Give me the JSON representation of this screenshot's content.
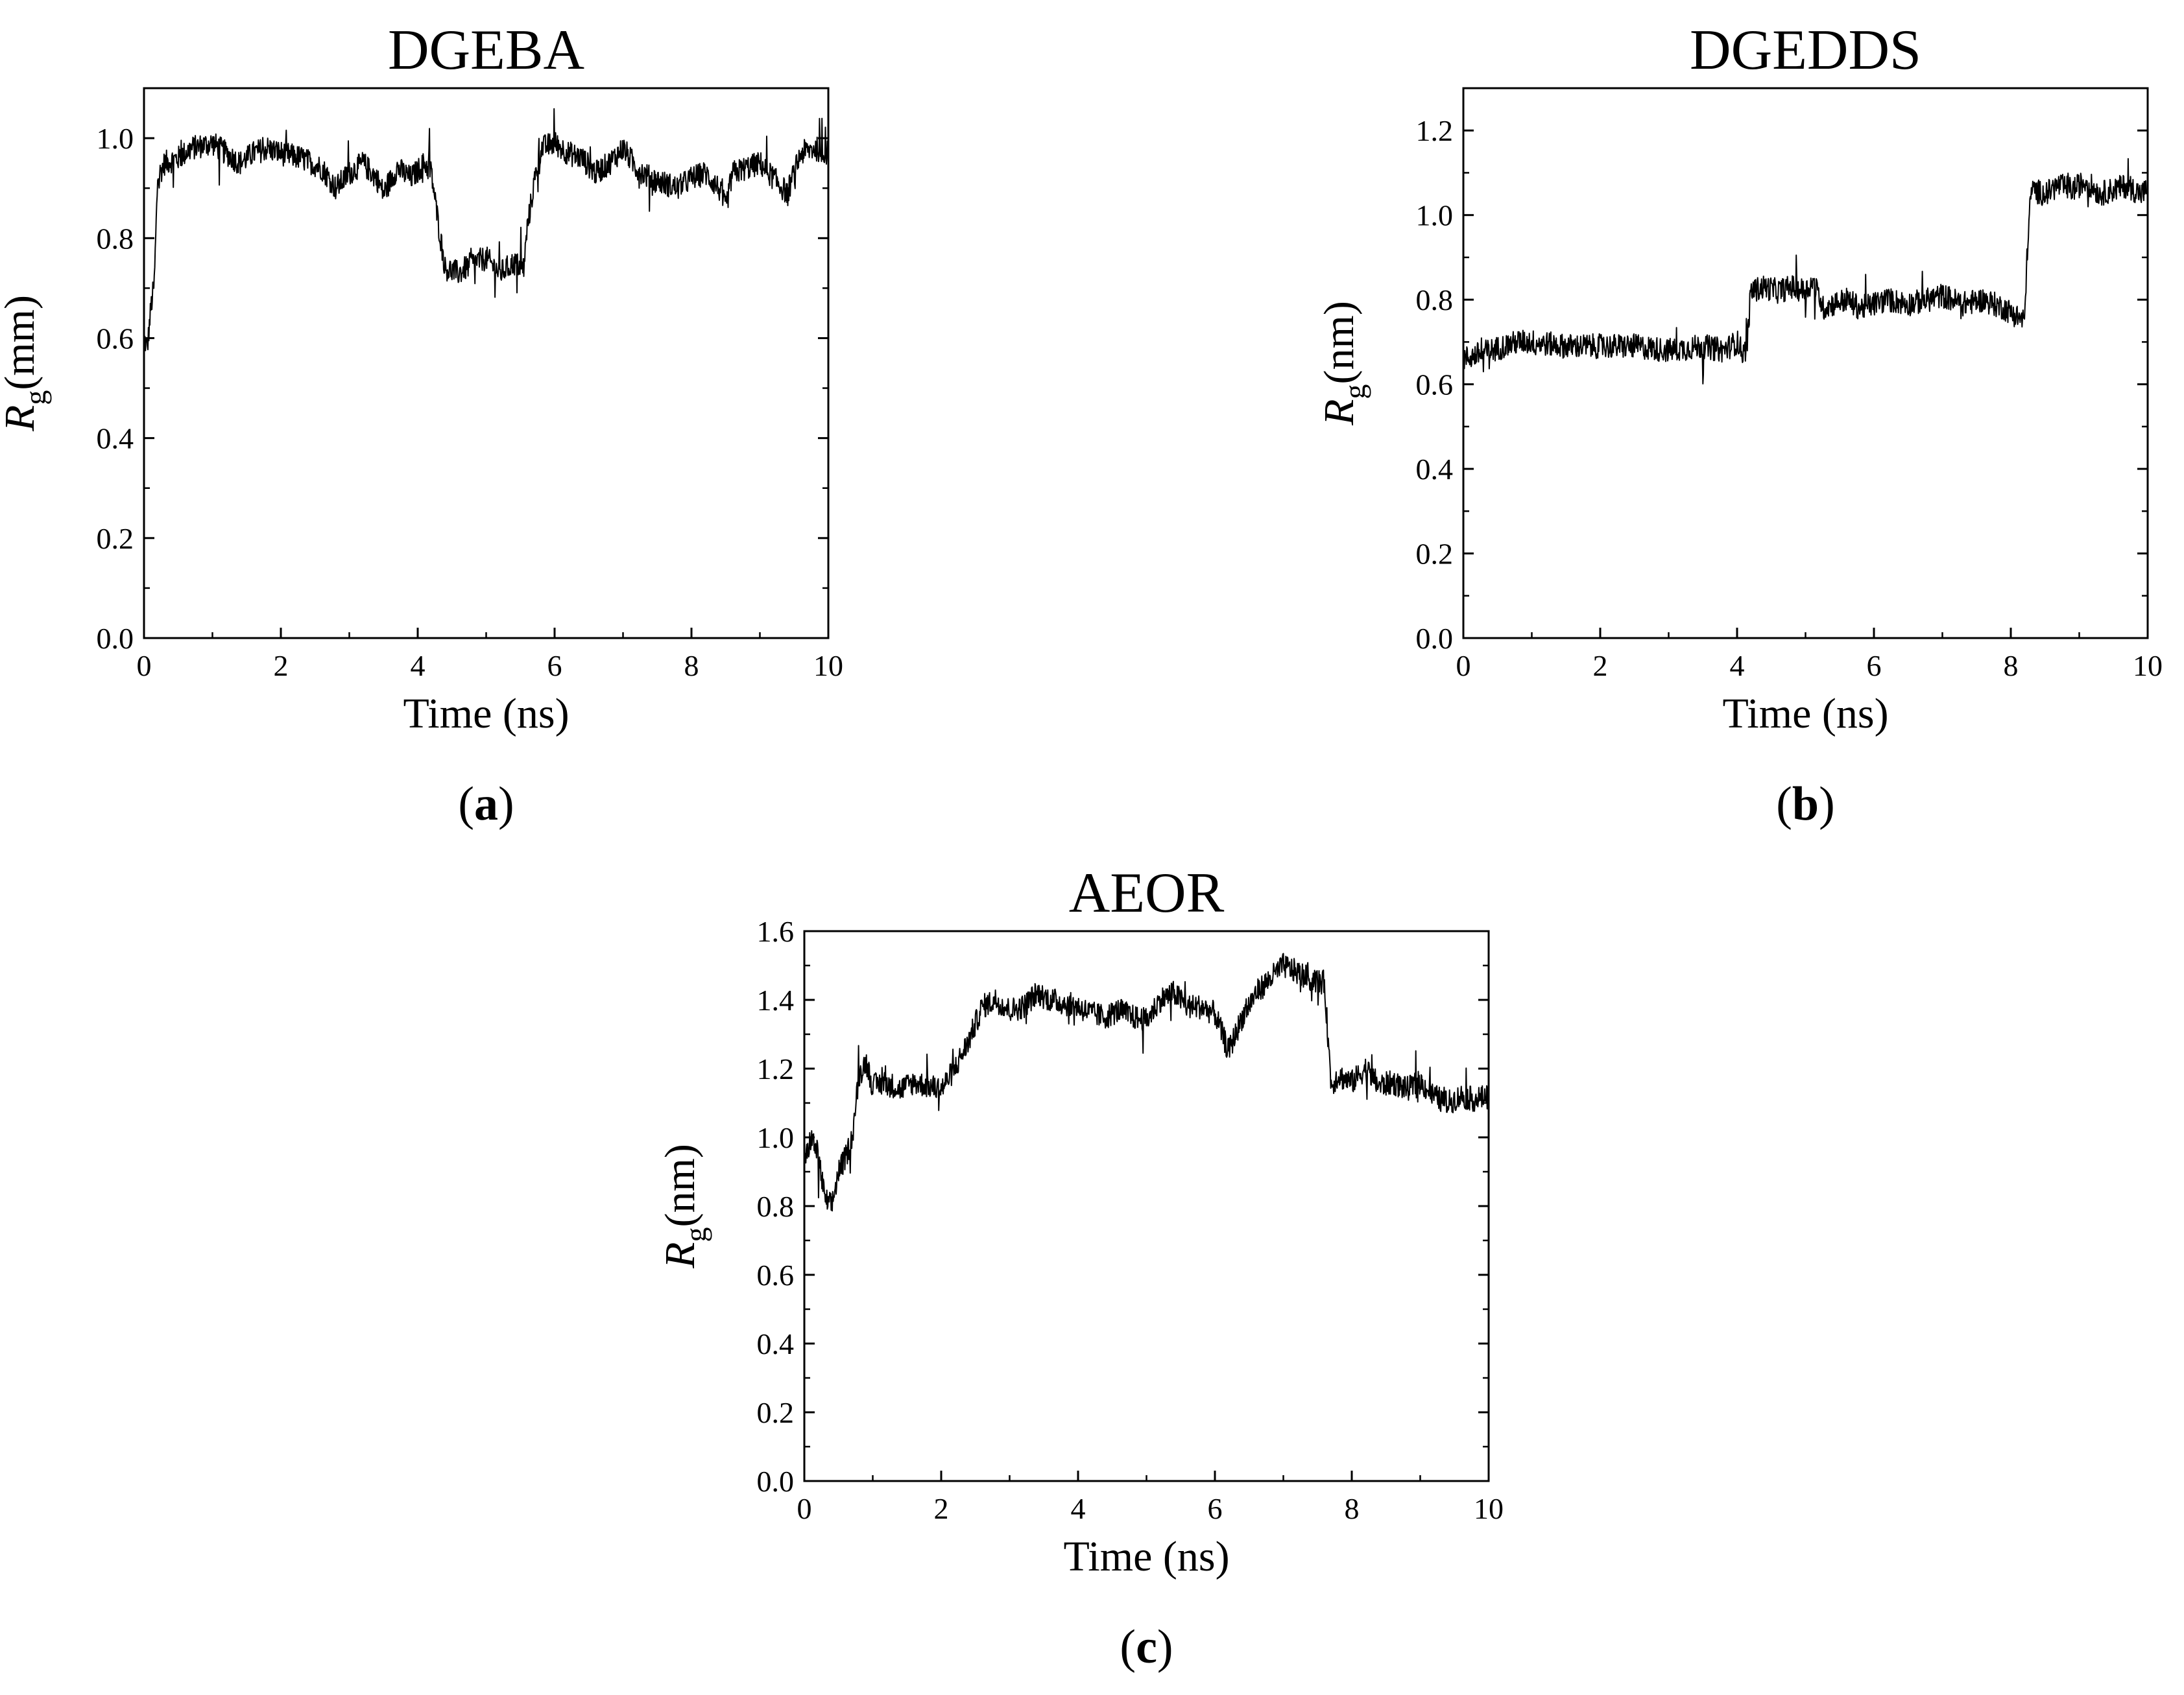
{
  "figure": {
    "panels": [
      {
        "id": "a",
        "letter": "a"
      },
      {
        "id": "b",
        "letter": "b"
      },
      {
        "id": "c",
        "letter": "c"
      }
    ]
  },
  "chart_data": [
    {
      "type": "line",
      "title": "DGEBA",
      "xlabel": "Time (ns)",
      "ylabel_symbol": "R",
      "ylabel_subscript": "g",
      "ylabel_unit": "(mm)",
      "xlim": [
        0,
        10
      ],
      "ylim": [
        0,
        1.1
      ],
      "xticks": [
        "0",
        "2",
        "4",
        "6",
        "8",
        "10"
      ],
      "yticks": [
        "0.0",
        "0.2",
        "0.4",
        "0.6",
        "0.8",
        "1.0"
      ],
      "line_color": "#000000",
      "grid": false,
      "series": [
        {
          "x": [
            0,
            0.05,
            0.1,
            0.15,
            0.2,
            0.3,
            0.5,
            0.7,
            1.0,
            1.2,
            1.4,
            1.6,
            1.8,
            2.0,
            2.3,
            2.6,
            2.8,
            3.0,
            3.2,
            3.4,
            3.5,
            3.7,
            3.9,
            4.1,
            4.2,
            4.3,
            4.4,
            4.6,
            4.8,
            5.0,
            5.2,
            5.4,
            5.55,
            5.6,
            5.7,
            5.8,
            6.0,
            6.2,
            6.4,
            6.6,
            6.8,
            7.0,
            7.2,
            7.4,
            7.6,
            7.8,
            8.0,
            8.2,
            8.4,
            8.5,
            8.6,
            8.8,
            9.0,
            9.2,
            9.4,
            9.6,
            9.8,
            10.0
          ],
          "y": [
            0.6,
            0.58,
            0.66,
            0.71,
            0.92,
            0.95,
            0.96,
            0.98,
            0.99,
            0.97,
            0.95,
            0.97,
            0.98,
            0.97,
            0.96,
            0.94,
            0.9,
            0.93,
            0.95,
            0.92,
            0.89,
            0.94,
            0.92,
            0.95,
            0.93,
            0.83,
            0.74,
            0.73,
            0.75,
            0.76,
            0.73,
            0.75,
            0.74,
            0.82,
            0.91,
            0.98,
            0.99,
            0.97,
            0.96,
            0.93,
            0.95,
            0.98,
            0.94,
            0.92,
            0.91,
            0.9,
            0.92,
            0.93,
            0.9,
            0.86,
            0.93,
            0.94,
            0.95,
            0.92,
            0.89,
            0.97,
            0.98,
            0.97
          ]
        }
      ]
    },
    {
      "type": "line",
      "title": "DGEDDS",
      "xlabel": "Time (ns)",
      "ylabel_symbol": "R",
      "ylabel_subscript": "g",
      "ylabel_unit": "(nm)",
      "xlim": [
        0,
        10
      ],
      "ylim": [
        0,
        1.3
      ],
      "xticks": [
        "0",
        "2",
        "4",
        "6",
        "8",
        "10"
      ],
      "yticks": [
        "0.0",
        "0.2",
        "0.4",
        "0.6",
        "0.8",
        "1.0",
        "1.2"
      ],
      "line_color": "#000000",
      "grid": false,
      "series": [
        {
          "x": [
            0,
            0.2,
            0.4,
            0.6,
            0.8,
            1.0,
            1.5,
            2.0,
            2.5,
            3.0,
            3.5,
            3.8,
            4.0,
            4.1,
            4.15,
            4.2,
            4.4,
            4.6,
            4.8,
            5.0,
            5.1,
            5.2,
            5.25,
            5.4,
            5.6,
            5.8,
            6.0,
            6.2,
            6.5,
            6.8,
            7.0,
            7.3,
            7.6,
            7.9,
            8.1,
            8.2,
            8.25,
            8.3,
            8.5,
            8.7,
            8.9,
            9.1,
            9.3,
            9.5,
            9.7,
            9.9,
            10.0
          ],
          "y": [
            0.66,
            0.67,
            0.68,
            0.69,
            0.7,
            0.7,
            0.69,
            0.69,
            0.69,
            0.68,
            0.69,
            0.68,
            0.7,
            0.67,
            0.7,
            0.82,
            0.83,
            0.82,
            0.83,
            0.82,
            0.84,
            0.81,
            0.78,
            0.79,
            0.8,
            0.78,
            0.79,
            0.8,
            0.79,
            0.8,
            0.81,
            0.79,
            0.8,
            0.78,
            0.76,
            0.75,
            0.95,
            1.06,
            1.05,
            1.07,
            1.06,
            1.08,
            1.05,
            1.06,
            1.07,
            1.05,
            1.06
          ]
        }
      ]
    },
    {
      "type": "line",
      "title": "AEOR",
      "xlabel": "Time (ns)",
      "ylabel_symbol": "R",
      "ylabel_subscript": "g",
      "ylabel_unit": "(nm)",
      "xlim": [
        0,
        10
      ],
      "ylim": [
        0,
        1.6
      ],
      "xticks": [
        "0",
        "2",
        "4",
        "6",
        "8",
        "10"
      ],
      "yticks": [
        "0.0",
        "0.2",
        "0.4",
        "0.6",
        "0.8",
        "1.0",
        "1.2",
        "1.4",
        "1.6"
      ],
      "line_color": "#000000",
      "grid": false,
      "series": [
        {
          "x": [
            0,
            0.1,
            0.2,
            0.3,
            0.4,
            0.5,
            0.6,
            0.7,
            0.8,
            0.9,
            1.0,
            1.2,
            1.4,
            1.6,
            1.8,
            2.0,
            2.2,
            2.4,
            2.6,
            2.8,
            3.0,
            3.2,
            3.4,
            3.6,
            3.8,
            4.0,
            4.2,
            4.4,
            4.6,
            4.8,
            5.0,
            5.2,
            5.4,
            5.6,
            5.8,
            6.0,
            6.2,
            6.3,
            6.4,
            6.6,
            6.8,
            7.0,
            7.2,
            7.4,
            7.6,
            7.65,
            7.7,
            7.8,
            8.0,
            8.2,
            8.4,
            8.6,
            8.8,
            9.0,
            9.2,
            9.4,
            9.6,
            9.8,
            10.0
          ],
          "y": [
            0.92,
            1.0,
            0.95,
            0.82,
            0.8,
            0.9,
            0.94,
            1.0,
            1.18,
            1.22,
            1.15,
            1.16,
            1.14,
            1.16,
            1.15,
            1.14,
            1.2,
            1.28,
            1.38,
            1.4,
            1.37,
            1.38,
            1.42,
            1.4,
            1.39,
            1.38,
            1.36,
            1.35,
            1.37,
            1.35,
            1.34,
            1.4,
            1.42,
            1.38,
            1.38,
            1.36,
            1.25,
            1.3,
            1.35,
            1.42,
            1.46,
            1.5,
            1.48,
            1.46,
            1.45,
            1.3,
            1.15,
            1.18,
            1.16,
            1.2,
            1.15,
            1.16,
            1.14,
            1.16,
            1.12,
            1.1,
            1.12,
            1.11,
            1.12
          ]
        }
      ]
    }
  ]
}
